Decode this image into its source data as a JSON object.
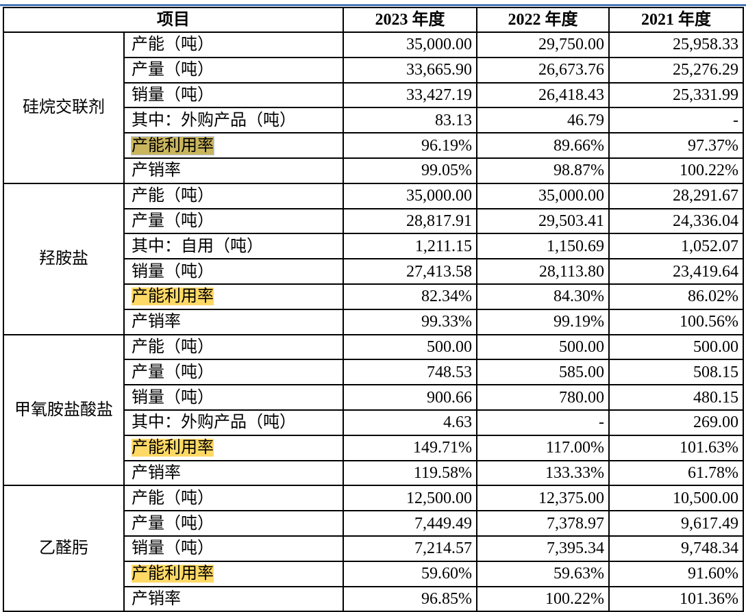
{
  "header": {
    "item": "项目",
    "years": [
      "2023 年度",
      "2022 年度",
      "2021 年度"
    ]
  },
  "colors": {
    "highlight": "#ffd966",
    "highlight_selected": "#c9b55e",
    "top_rule": "#4a78b8"
  },
  "groups": [
    {
      "name": "硅烷交联剂",
      "rows": [
        {
          "label": "产能（吨）",
          "values": [
            "35,000.00",
            "29,750.00",
            "25,958.33"
          ]
        },
        {
          "label": "产量（吨）",
          "values": [
            "33,665.90",
            "26,673.76",
            "25,276.29"
          ]
        },
        {
          "label": "销量（吨）",
          "values": [
            "33,427.19",
            "26,418.43",
            "25,331.99"
          ]
        },
        {
          "label": "其中：外购产品（吨）",
          "values": [
            "83.13",
            "46.79",
            "-"
          ]
        },
        {
          "label": "产能利用率",
          "highlight": "selected",
          "values": [
            "96.19%",
            "89.66%",
            "97.37%"
          ]
        },
        {
          "label": "产销率",
          "values": [
            "99.05%",
            "98.87%",
            "100.22%"
          ]
        }
      ]
    },
    {
      "name": "羟胺盐",
      "rows": [
        {
          "label": "产能（吨）",
          "values": [
            "35,000.00",
            "35,000.00",
            "28,291.67"
          ]
        },
        {
          "label": "产量（吨）",
          "values": [
            "28,817.91",
            "29,503.41",
            "24,336.04"
          ]
        },
        {
          "label": "其中：自用（吨）",
          "values": [
            "1,211.15",
            "1,150.69",
            "1,052.07"
          ]
        },
        {
          "label": "销量（吨）",
          "values": [
            "27,413.58",
            "28,113.80",
            "23,419.64"
          ]
        },
        {
          "label": "产能利用率",
          "highlight": "yes",
          "values": [
            "82.34%",
            "84.30%",
            "86.02%"
          ]
        },
        {
          "label": "产销率",
          "values": [
            "99.33%",
            "99.19%",
            "100.56%"
          ]
        }
      ]
    },
    {
      "name": "甲氧胺盐酸盐",
      "rows": [
        {
          "label": "产能（吨）",
          "values": [
            "500.00",
            "500.00",
            "500.00"
          ]
        },
        {
          "label": "产量（吨）",
          "values": [
            "748.53",
            "585.00",
            "508.15"
          ]
        },
        {
          "label": "销量（吨）",
          "values": [
            "900.66",
            "780.00",
            "480.15"
          ]
        },
        {
          "label": "其中：外购产品（吨）",
          "values": [
            "4.63",
            "-",
            "269.00"
          ]
        },
        {
          "label": "产能利用率",
          "highlight": "yes",
          "values": [
            "149.71%",
            "117.00%",
            "101.63%"
          ]
        },
        {
          "label": "产销率",
          "values": [
            "119.58%",
            "133.33%",
            "61.78%"
          ]
        }
      ]
    },
    {
      "name": "乙醛肟",
      "rows": [
        {
          "label": "产能（吨）",
          "values": [
            "12,500.00",
            "12,375.00",
            "10,500.00"
          ]
        },
        {
          "label": "产量（吨）",
          "values": [
            "7,449.49",
            "7,378.97",
            "9,617.49"
          ]
        },
        {
          "label": "销量（吨）",
          "values": [
            "7,214.57",
            "7,395.34",
            "9,748.34"
          ]
        },
        {
          "label": "产能利用率",
          "highlight": "yes",
          "values": [
            "59.60%",
            "59.63%",
            "91.60%"
          ]
        },
        {
          "label": "产销率",
          "values": [
            "96.85%",
            "100.22%",
            "101.36%"
          ]
        }
      ]
    }
  ]
}
